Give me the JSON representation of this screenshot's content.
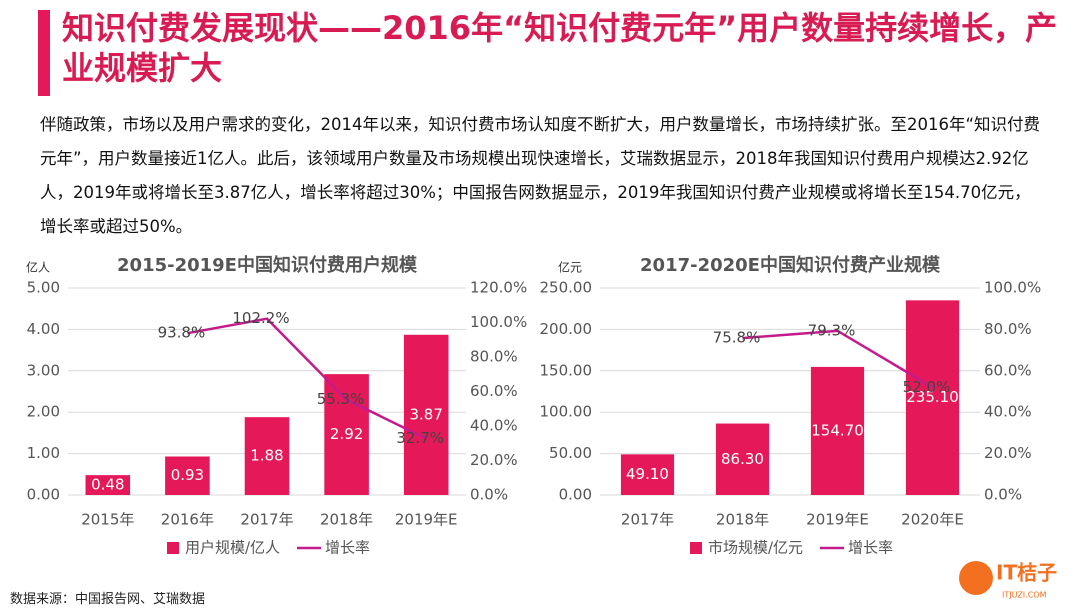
{
  "title": "知识付费发展现状——2016年“知识付费元年”用户数量持续增长，产业规模扩大",
  "paragraph": "伴随政策，市场以及用户需求的变化，2014年以来，知识付费市场认知度不断扩大，用户数量增长，市场持续扩张。至2016年“知识付费元年”，用户数量接近1亿人。此后，该领域用户数量及市场规模出现快速增长，艾瑞数据显示，2018年我国知识付费用户规模达2.92亿人，2019年或将增长至3.87亿人，增长率将超过30%；中国报告网数据显示，2019年我国知识付费产业规模或将增长至154.70亿元，增长率或超过50%。",
  "source": "数据来源：中国报告网、艾瑞数据",
  "logo": {
    "name": "IT桔子",
    "site": "ITJUZI.COM"
  },
  "chart_data": [
    {
      "type": "bar",
      "title": "2015-2019E中国知识付费用户规模",
      "y_label": "亿人",
      "categories": [
        "2015年",
        "2016年",
        "2017年",
        "2018年",
        "2019年E"
      ],
      "series": [
        {
          "name": "用户规模/亿人",
          "color": "#e5195a",
          "values": [
            0.48,
            0.93,
            1.88,
            2.92,
            3.87
          ]
        },
        {
          "name": "增长率",
          "type": "line",
          "axis": "y2",
          "color": "#c41a8c",
          "values": [
            null,
            93.8,
            102.2,
            55.3,
            32.7
          ],
          "value_labels": [
            null,
            "93.8%",
            "102.2%",
            "55.3%",
            "32.7%"
          ]
        }
      ],
      "ylim": [
        0,
        5
      ],
      "yticks": [
        {
          "value": 0,
          "label": "0.00"
        },
        {
          "value": 1,
          "label": "1.00"
        },
        {
          "value": 2,
          "label": "2.00"
        },
        {
          "value": 3,
          "label": "3.00"
        },
        {
          "value": 4,
          "label": "4.00"
        },
        {
          "value": 5,
          "label": "5.00"
        }
      ],
      "y2lim": [
        0,
        120
      ],
      "y2ticks": [
        {
          "value": 0,
          "label": "0.0%"
        },
        {
          "value": 20,
          "label": "20.0%"
        },
        {
          "value": 40,
          "label": "40.0%"
        },
        {
          "value": 60,
          "label": "60.0%"
        },
        {
          "value": 80,
          "label": "80.0%"
        },
        {
          "value": 100,
          "label": "100.0%"
        },
        {
          "value": 120,
          "label": "120.0%"
        }
      ],
      "grid": true,
      "legend": "bottom"
    },
    {
      "type": "bar",
      "title": "2017-2020E中国知识付费产业规模",
      "y_label": "亿元",
      "categories": [
        "2017年",
        "2018年",
        "2019年E",
        "2020年E"
      ],
      "series": [
        {
          "name": "市场规模/亿元",
          "color": "#e5195a",
          "values": [
            49.1,
            86.3,
            154.7,
            235.1
          ],
          "value_labels": [
            "49.10",
            "86.30",
            "154.70",
            "235.10"
          ]
        },
        {
          "name": "增长率",
          "type": "line",
          "axis": "y2",
          "color": "#c41a8c",
          "values": [
            null,
            75.8,
            79.3,
            52.0
          ],
          "value_labels": [
            null,
            "75.8%",
            "79.3%",
            "52.0%"
          ]
        }
      ],
      "ylim": [
        0,
        250
      ],
      "yticks": [
        {
          "value": 0,
          "label": "0.00"
        },
        {
          "value": 50,
          "label": "50.00"
        },
        {
          "value": 100,
          "label": "100.00"
        },
        {
          "value": 150,
          "label": "150.00"
        },
        {
          "value": 200,
          "label": "200.00"
        },
        {
          "value": 250,
          "label": "250.00"
        }
      ],
      "y2lim": [
        0,
        100
      ],
      "y2ticks": [
        {
          "value": 0,
          "label": "0.0%"
        },
        {
          "value": 20,
          "label": "20.0%"
        },
        {
          "value": 40,
          "label": "40.0%"
        },
        {
          "value": 60,
          "label": "60.0%"
        },
        {
          "value": 80,
          "label": "80.0%"
        },
        {
          "value": 100,
          "label": "100.0%"
        }
      ],
      "grid": true,
      "legend": "bottom"
    }
  ]
}
